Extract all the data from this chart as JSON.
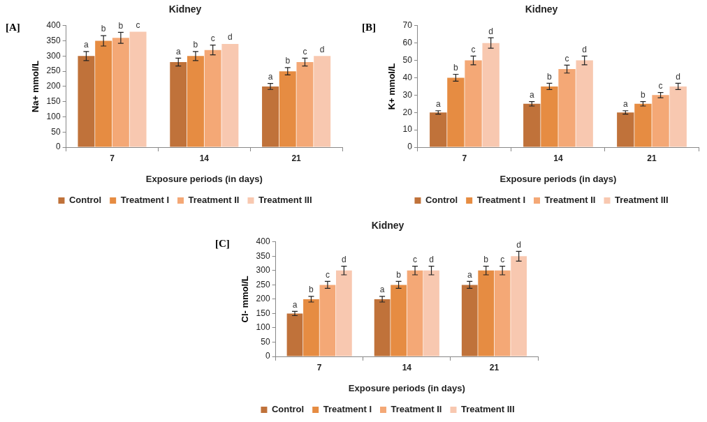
{
  "chart_data": [
    {
      "type": "bar",
      "title": "Kidney",
      "xlabel": "Exposure periods (in days)",
      "ylabel": "Na+ mmol/L",
      "annotations": [
        "[A]"
      ],
      "categories": [
        "7",
        "14",
        "21"
      ],
      "ylim": [
        0,
        400
      ],
      "yticks": [
        0,
        50,
        100,
        150,
        200,
        250,
        300,
        350,
        400
      ],
      "grid": false,
      "legend": "bottom",
      "series": [
        {
          "name": "Control",
          "color": "#c0723a",
          "values": [
            300,
            280,
            200
          ],
          "errors": [
            15,
            13,
            10
          ],
          "value_labels": [
            "a",
            "a",
            "a"
          ]
        },
        {
          "name": "Treatment I",
          "color": "#e68c42",
          "values": [
            350,
            300,
            250
          ],
          "errors": [
            17,
            15,
            12
          ],
          "value_labels": [
            "b",
            "b",
            "b"
          ]
        },
        {
          "name": "Treatment II",
          "color": "#f4a876",
          "values": [
            360,
            320,
            280
          ],
          "errors": [
            18,
            16,
            13
          ],
          "value_labels": [
            "b",
            "c",
            "c"
          ]
        },
        {
          "name": "Treatment III",
          "color": "#f8c8b0",
          "values": [
            380,
            340,
            300
          ],
          "errors": [
            null,
            null,
            null
          ],
          "value_labels": [
            "c",
            "d",
            "d"
          ]
        }
      ]
    },
    {
      "type": "bar",
      "title": "Kidney",
      "xlabel": "Exposure periods (in days)",
      "ylabel": "K+ mmol/L",
      "annotations": [
        "[B]"
      ],
      "categories": [
        "7",
        "14",
        "21"
      ],
      "ylim": [
        0,
        70
      ],
      "yticks": [
        0,
        10,
        20,
        30,
        40,
        50,
        60,
        70
      ],
      "grid": false,
      "legend": "bottom",
      "series": [
        {
          "name": "Control",
          "color": "#c0723a",
          "values": [
            20,
            25,
            20
          ],
          "errors": [
            1,
            1.3,
            1
          ],
          "value_labels": [
            "a",
            "a",
            "a"
          ]
        },
        {
          "name": "Treatment I",
          "color": "#e68c42",
          "values": [
            40,
            35,
            25
          ],
          "errors": [
            2,
            1.8,
            1.3
          ],
          "value_labels": [
            "b",
            "b",
            "b"
          ]
        },
        {
          "name": "Treatment II",
          "color": "#f4a876",
          "values": [
            50,
            45,
            30
          ],
          "errors": [
            2.5,
            2.3,
            1.5
          ],
          "value_labels": [
            "c",
            "c",
            "c"
          ]
        },
        {
          "name": "Treatment III",
          "color": "#f8c8b0",
          "values": [
            60,
            50,
            35
          ],
          "errors": [
            3,
            2.5,
            1.8
          ],
          "value_labels": [
            "d",
            "d",
            "d"
          ]
        }
      ]
    },
    {
      "type": "bar",
      "title": "Kidney",
      "xlabel": "Exposure periods (in days)",
      "ylabel": "Cl- mmol/L",
      "annotations": [
        "[C]"
      ],
      "categories": [
        "7",
        "14",
        "21"
      ],
      "ylim": [
        0,
        400
      ],
      "yticks": [
        0,
        50,
        100,
        150,
        200,
        250,
        300,
        350,
        400
      ],
      "grid": false,
      "legend": "bottom",
      "series": [
        {
          "name": "Control",
          "color": "#c0723a",
          "values": [
            150,
            200,
            250
          ],
          "errors": [
            7.5,
            10,
            12
          ],
          "value_labels": [
            "a",
            "a",
            "a"
          ]
        },
        {
          "name": "Treatment I",
          "color": "#e68c42",
          "values": [
            200,
            250,
            300
          ],
          "errors": [
            10,
            12,
            15
          ],
          "value_labels": [
            "b",
            "b",
            "b"
          ]
        },
        {
          "name": "Treatment II",
          "color": "#f4a876",
          "values": [
            250,
            300,
            300
          ],
          "errors": [
            12,
            15,
            15
          ],
          "value_labels": [
            "c",
            "c",
            "c"
          ]
        },
        {
          "name": "Treatment III",
          "color": "#f8c8b0",
          "values": [
            300,
            300,
            350
          ],
          "errors": [
            15,
            15,
            17
          ],
          "value_labels": [
            "d",
            "d",
            "d"
          ]
        }
      ]
    }
  ]
}
